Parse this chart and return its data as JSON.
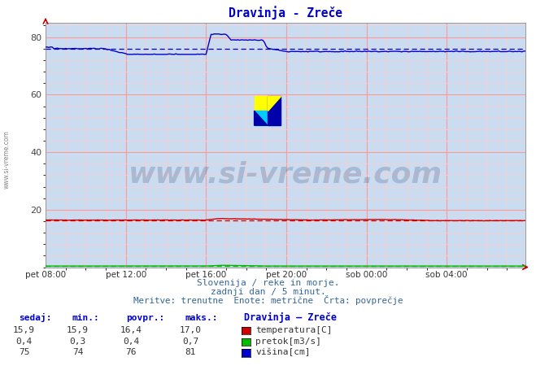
{
  "title": "Dravinja - Zreče",
  "title_color": "#0000cc",
  "background_color": "#ccdcf0",
  "outer_bg_color": "#ffffff",
  "grid_color_major": "#ff9999",
  "grid_color_minor": "#ffcccc",
  "xlabel_ticks": [
    "pet 08:00",
    "pet 12:00",
    "pet 16:00",
    "pet 20:00",
    "sob 00:00",
    "sob 04:00"
  ],
  "xlabel_tick_positions": [
    0,
    48,
    96,
    144,
    192,
    240
  ],
  "ylim": [
    0,
    85
  ],
  "yticks": [
    20,
    40,
    60,
    80
  ],
  "total_points": 288,
  "temperatura_avg": 16.4,
  "pretok_avg": 0.4,
  "visina_avg": 76,
  "temp_color": "#cc0000",
  "pretok_color": "#00bb00",
  "visina_color": "#0000cc",
  "watermark": "www.si-vreme.com",
  "subtitle1": "Slovenija / reke in morje.",
  "subtitle2": "zadnji dan / 5 minut.",
  "subtitle3": "Meritve: trenutne  Enote: metrične  Črta: povprečje",
  "legend_title": "Dravinja – Zreče",
  "legend_labels": [
    "temperatura[C]",
    "pretok[m3/s]",
    "višina[cm]"
  ],
  "legend_colors": [
    "#cc0000",
    "#00bb00",
    "#0000cc"
  ],
  "table_headers": [
    "sedaj:",
    "min.:",
    "povpr.:",
    "maks.:"
  ],
  "table_data": [
    [
      "15,9",
      "15,9",
      "16,4",
      "17,0"
    ],
    [
      "0,4",
      "0,3",
      "0,4",
      "0,7"
    ],
    [
      "75",
      "74",
      "76",
      "81"
    ]
  ],
  "left_label": "www.si-vreme.com"
}
